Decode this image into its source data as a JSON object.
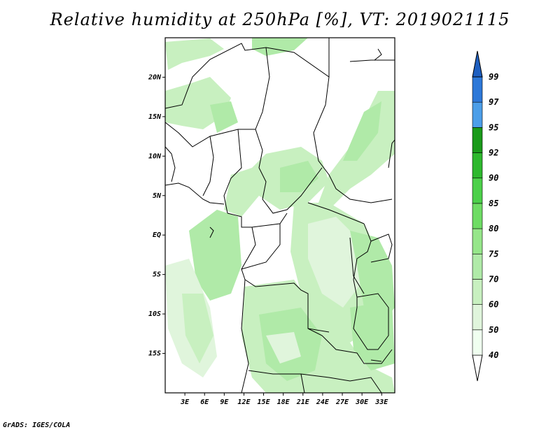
{
  "title": "Relative humidity at 250hPa [%], VT: 2019021115",
  "footer": "GrADS: IGES/COLA",
  "map": {
    "lat_labels": [
      "20N",
      "15N",
      "10N",
      "5N",
      "EQ",
      "5S",
      "10S",
      "15S"
    ],
    "lat_values": [
      20,
      15,
      10,
      5,
      0,
      -5,
      -10,
      -15
    ],
    "lon_labels": [
      "3E",
      "6E",
      "9E",
      "12E",
      "15E",
      "18E",
      "21E",
      "24E",
      "27E",
      "30E",
      "33E"
    ],
    "lon_values": [
      3,
      6,
      9,
      12,
      15,
      18,
      21,
      24,
      27,
      30,
      33
    ],
    "lat_range": [
      -20,
      25
    ],
    "lon_range": [
      0,
      35
    ]
  },
  "colorbar": {
    "levels": [
      "40",
      "50",
      "60",
      "70",
      "75",
      "80",
      "85",
      "90",
      "92",
      "95",
      "97",
      "99"
    ],
    "colors": [
      "#f0fff0",
      "#e0f5dc",
      "#c8f0c0",
      "#b0eaa8",
      "#96e68a",
      "#6edc64",
      "#4cd04a",
      "#2eb82e",
      "#1a9a1a",
      "#4c9ee8",
      "#2d78d8",
      "#1e5fc0"
    ]
  }
}
